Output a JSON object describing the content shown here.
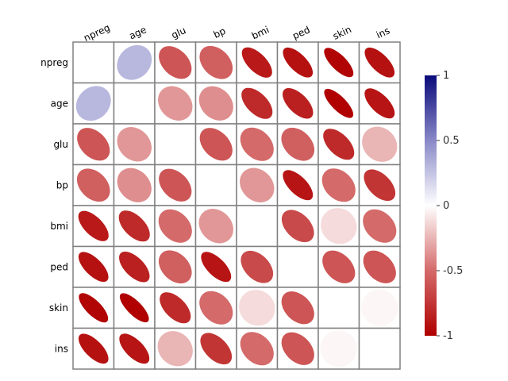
{
  "chart_data": {
    "type": "heatmap",
    "style": "correlation-ellipse-matrix",
    "variables": [
      "npreg",
      "age",
      "glu",
      "bp",
      "bmi",
      "ped",
      "skin",
      "ins"
    ],
    "diagonal": "blank",
    "matrix": [
      [
        null,
        0.3,
        -0.6,
        -0.55,
        -0.88,
        -0.92,
        -0.98,
        -0.92
      ],
      [
        0.3,
        null,
        -0.35,
        -0.38,
        -0.8,
        -0.85,
        -1.0,
        -0.9
      ],
      [
        -0.6,
        -0.35,
        null,
        -0.6,
        -0.5,
        -0.55,
        -0.8,
        -0.25
      ],
      [
        -0.55,
        -0.38,
        -0.6,
        null,
        -0.35,
        -0.9,
        -0.5,
        -0.75
      ],
      [
        -0.88,
        -0.8,
        -0.5,
        -0.35,
        null,
        -0.65,
        -0.12,
        -0.5
      ],
      [
        -0.92,
        -0.85,
        -0.55,
        -0.9,
        -0.65,
        null,
        -0.6,
        -0.6
      ],
      [
        -0.98,
        -1.0,
        -0.8,
        -0.5,
        -0.12,
        -0.6,
        null,
        -0.03
      ],
      [
        -0.92,
        -0.9,
        -0.25,
        -0.75,
        -0.5,
        -0.6,
        -0.03,
        null
      ]
    ],
    "colorbar": {
      "min": -1,
      "max": 1,
      "ticks": [
        -1,
        -0.5,
        0,
        0.5,
        1
      ],
      "tick_labels": [
        "-1",
        "-0.5",
        "0",
        "0.5",
        "1"
      ],
      "colors": {
        "neg_strong": "#b00000",
        "neg_mid": "#d46a6a",
        "neutral": "#ffffff",
        "pos_mid": "#8888c8",
        "pos_strong": "#0a0a7a"
      }
    },
    "grid_color": "#808080"
  }
}
